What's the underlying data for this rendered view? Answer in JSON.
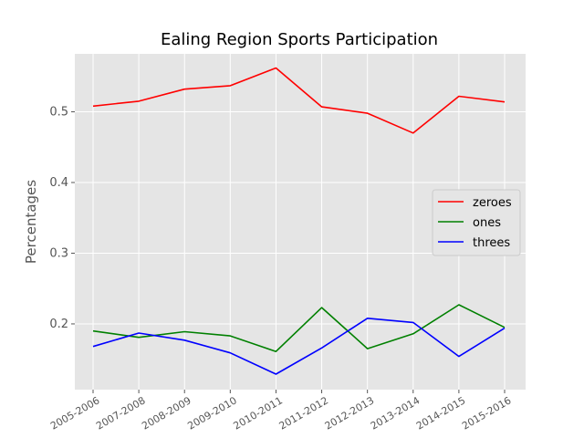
{
  "chart_data": {
    "type": "line",
    "title": "Ealing Region Sports Participation",
    "xlabel": "",
    "ylabel": "Percentages",
    "categories": [
      "2005-2006",
      "2007-2008",
      "2008-2009",
      "2009-2010",
      "2010-2011",
      "2011-2012",
      "2012-2013",
      "2013-2014",
      "2014-2015",
      "2015-2016"
    ],
    "ylim": [
      0.107,
      0.582
    ],
    "yticks": [
      0.2,
      0.3,
      0.4,
      0.5
    ],
    "ytick_labels": [
      "0.2",
      "0.3",
      "0.4",
      "0.5"
    ],
    "grid": true,
    "legend_position": "center-right",
    "series": [
      {
        "name": "zeroes",
        "color": "#ff0000",
        "values": [
          0.508,
          0.515,
          0.532,
          0.537,
          0.562,
          0.507,
          0.498,
          0.47,
          0.522,
          0.514
        ]
      },
      {
        "name": "ones",
        "color": "#008000",
        "values": [
          0.19,
          0.181,
          0.189,
          0.183,
          0.161,
          0.223,
          0.165,
          0.186,
          0.227,
          0.195
        ]
      },
      {
        "name": "threes",
        "color": "#0000ff",
        "values": [
          0.168,
          0.187,
          0.177,
          0.159,
          0.129,
          0.166,
          0.208,
          0.202,
          0.154,
          0.194
        ]
      }
    ]
  }
}
